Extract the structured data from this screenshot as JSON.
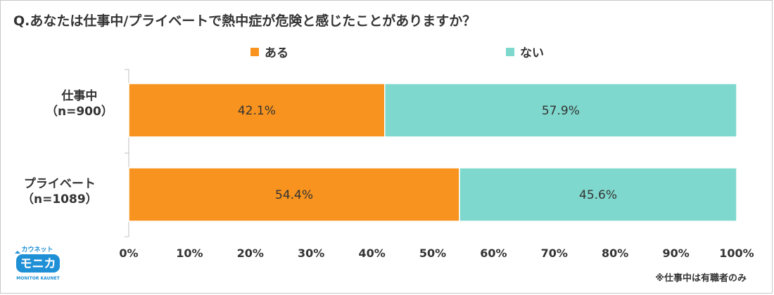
{
  "title": "Q.あなたは仕事中/プライベートで熱中症が危険と感じたことがありますか？",
  "note": "※仕事中は有職者のみ",
  "logo": {
    "top_text": "カウネット",
    "main_text": "モニカ",
    "sub_text": "MONITOR KAUNET"
  },
  "chart_data": {
    "type": "bar",
    "orientation": "horizontal",
    "stacked": true,
    "categories": [
      {
        "name": "仕事中",
        "n": "（n=900）"
      },
      {
        "name": "プライベート",
        "n": "（n=1089）"
      }
    ],
    "series": [
      {
        "name": "ある",
        "color": "#f7931e",
        "values": [
          42.1,
          54.4
        ],
        "labels": [
          "42.1%",
          "54.4%"
        ]
      },
      {
        "name": "ない",
        "color": "#7fd8cd",
        "values": [
          57.9,
          45.6
        ],
        "labels": [
          "57.9%",
          "45.6%"
        ]
      }
    ],
    "xlim": [
      0,
      100
    ],
    "xticks": [
      "0%",
      "10%",
      "20%",
      "30%",
      "40%",
      "50%",
      "60%",
      "70%",
      "80%",
      "90%",
      "100%"
    ],
    "legend_position": "top",
    "grid": false
  }
}
